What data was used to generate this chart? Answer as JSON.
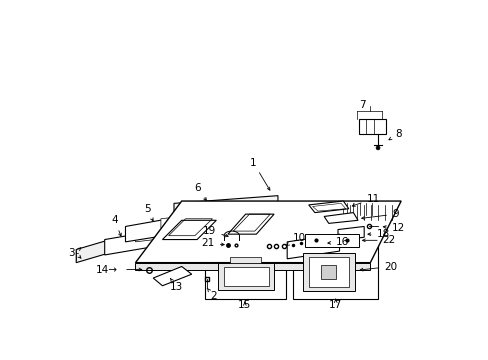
{
  "bg_color": "#ffffff",
  "lc": "#1a1a1a",
  "fig_w": 4.89,
  "fig_h": 3.6,
  "dpi": 100,
  "xlim": [
    0,
    489
  ],
  "ylim": [
    0,
    360
  ]
}
